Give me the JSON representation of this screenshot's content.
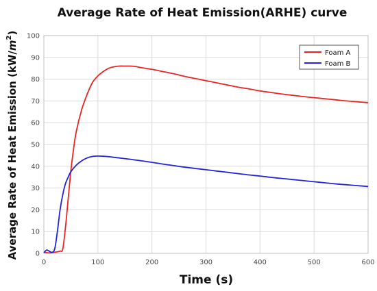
{
  "chart_data": {
    "type": "line",
    "title": "Average Rate of Heat Emission(ARHE) curve",
    "xlabel": "Time (s)",
    "ylabel_main": "Average Rate of Heat Emission (kW/",
    "ylabel_unit_var": "m",
    "ylabel_unit_exp": "2",
    "ylabel_close": ")",
    "xlim": [
      0,
      600
    ],
    "ylim": [
      0,
      100
    ],
    "xticks": [
      0,
      100,
      200,
      300,
      400,
      500,
      600
    ],
    "yticks": [
      0,
      10,
      20,
      30,
      40,
      50,
      60,
      70,
      80,
      90,
      100
    ],
    "grid": true,
    "legend_position": "top-right",
    "series": [
      {
        "name": "Foam A",
        "color": "#ee2222",
        "x": [
          0,
          10,
          20,
          30,
          35,
          40,
          45,
          50,
          55,
          60,
          70,
          80,
          90,
          100,
          110,
          120,
          130,
          140,
          150,
          160,
          170,
          180,
          200,
          220,
          240,
          260,
          280,
          300,
          320,
          340,
          360,
          380,
          400,
          420,
          440,
          460,
          480,
          500,
          520,
          540,
          560,
          580,
          600
        ],
        "y": [
          0.5,
          0.2,
          0.5,
          1.0,
          2.0,
          12,
          25,
          38,
          48,
          56,
          66,
          73,
          78.5,
          81.5,
          83.5,
          85,
          85.7,
          86,
          86,
          86,
          85.8,
          85.3,
          84.5,
          83.5,
          82.5,
          81.3,
          80.3,
          79.3,
          78.3,
          77.3,
          76.3,
          75.5,
          74.6,
          73.9,
          73.2,
          72.6,
          72,
          71.5,
          71,
          70.5,
          70,
          69.6,
          69.2
        ]
      },
      {
        "name": "Foam B",
        "color": "#2222dd",
        "x": [
          0,
          5,
          10,
          15,
          20,
          25,
          30,
          35,
          40,
          45,
          50,
          60,
          70,
          80,
          90,
          100,
          110,
          120,
          140,
          160,
          180,
          200,
          220,
          240,
          260,
          280,
          300,
          320,
          340,
          360,
          380,
          400,
          420,
          440,
          460,
          480,
          500,
          520,
          540,
          560,
          580,
          600
        ],
        "y": [
          0.3,
          1.5,
          1.0,
          0.5,
          2.0,
          10,
          20,
          27,
          32,
          35,
          37.5,
          40.5,
          42.5,
          43.8,
          44.5,
          44.7,
          44.6,
          44.4,
          43.8,
          43.2,
          42.5,
          41.8,
          41.0,
          40.3,
          39.6,
          39.0,
          38.4,
          37.8,
          37.2,
          36.6,
          36.0,
          35.5,
          34.9,
          34.4,
          33.9,
          33.4,
          32.9,
          32.4,
          31.9,
          31.5,
          31.1,
          30.7
        ]
      }
    ]
  }
}
